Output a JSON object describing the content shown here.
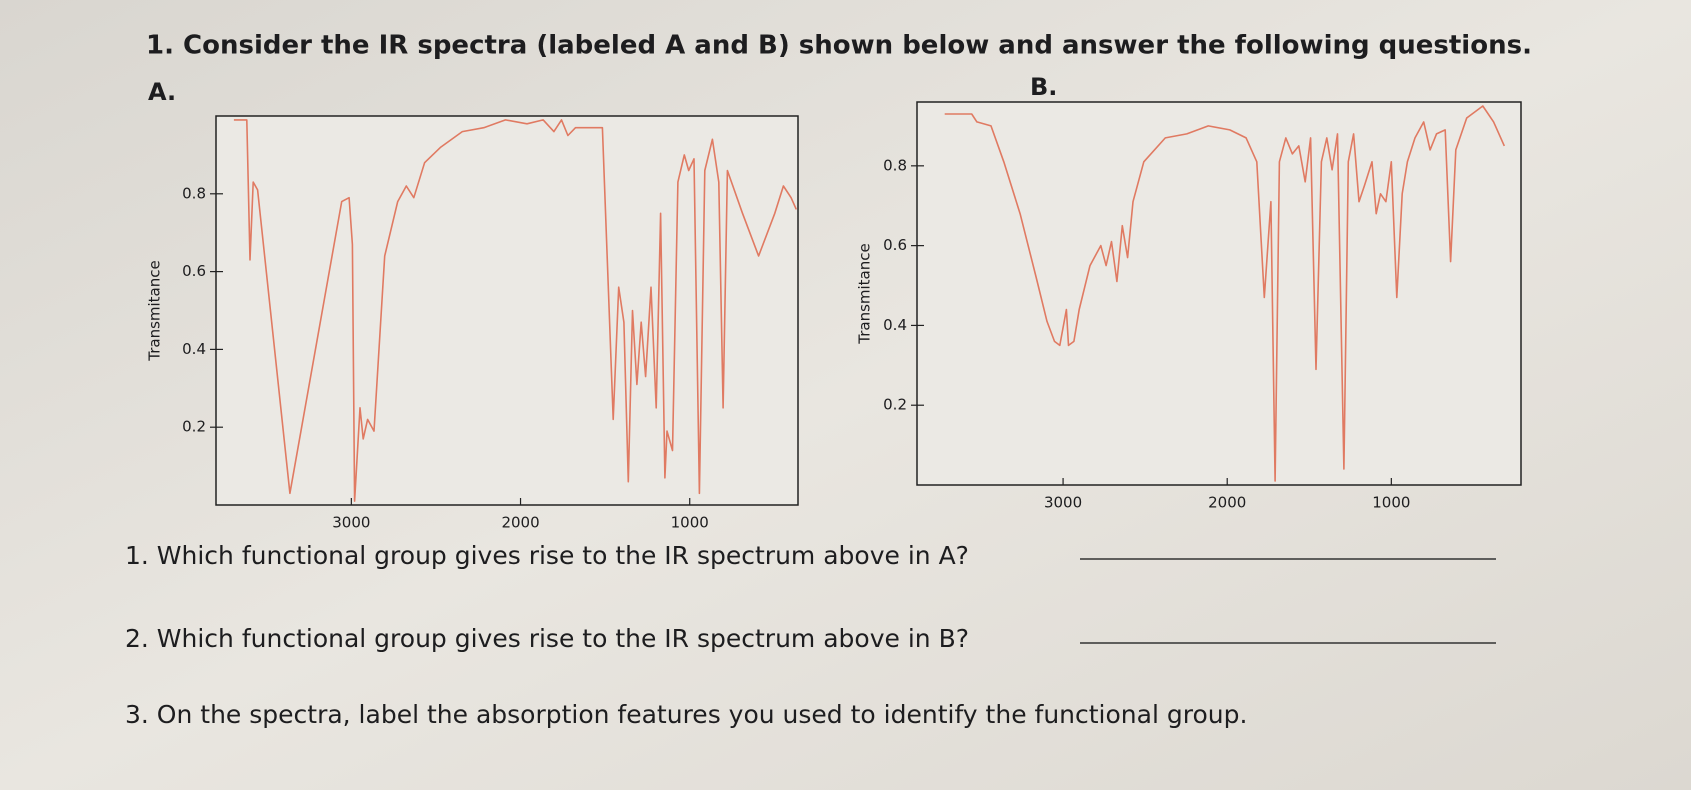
{
  "heading": "1. Consider the IR spectra (labeled A and B) shown below and answer the following questions.",
  "chart_data": [
    {
      "type": "line",
      "title": "A.",
      "ylabel": "Transmitance",
      "color": "#e07a62",
      "xlim": [
        3800,
        360
      ],
      "ylim": [
        0,
        1
      ],
      "xticks": [
        3000,
        2000,
        1000
      ],
      "yticks": [
        0.2,
        0.4,
        0.6,
        0.8
      ],
      "x": [
        3694,
        3618,
        3599,
        3580,
        3554,
        3363,
        3057,
        3013,
        2994,
        2981,
        2949,
        2930,
        2904,
        2866,
        2803,
        2726,
        2675,
        2631,
        2567,
        2471,
        2344,
        2217,
        2089,
        1962,
        1866,
        1803,
        1758,
        1720,
        1675,
        1516,
        1452,
        1420,
        1389,
        1363,
        1338,
        1312,
        1287,
        1261,
        1229,
        1198,
        1172,
        1147,
        1134,
        1102,
        1070,
        1032,
        1006,
        975,
        943,
        911,
        866,
        828,
        803,
        777,
        688,
        593,
        497,
        446,
        401,
        370
      ],
      "values": [
        0.99,
        0.99,
        0.63,
        0.83,
        0.81,
        0.03,
        0.78,
        0.79,
        0.67,
        0.01,
        0.25,
        0.17,
        0.22,
        0.19,
        0.64,
        0.78,
        0.82,
        0.79,
        0.88,
        0.92,
        0.96,
        0.97,
        0.99,
        0.98,
        0.99,
        0.96,
        0.99,
        0.95,
        0.97,
        0.97,
        0.22,
        0.56,
        0.47,
        0.06,
        0.5,
        0.31,
        0.47,
        0.33,
        0.56,
        0.25,
        0.75,
        0.07,
        0.19,
        0.14,
        0.83,
        0.9,
        0.86,
        0.89,
        0.03,
        0.86,
        0.94,
        0.83,
        0.25,
        0.86,
        0.75,
        0.64,
        0.75,
        0.82,
        0.79,
        0.76
      ]
    },
    {
      "type": "line",
      "title": "B.",
      "ylabel": "Transmitance",
      "color": "#e07a62",
      "xlim": [
        3890,
        210
      ],
      "ylim": [
        0,
        0.96
      ],
      "xticks": [
        3000,
        2000,
        1000
      ],
      "yticks": [
        0.2,
        0.4,
        0.6,
        0.8
      ],
      "x": [
        3721,
        3557,
        3525,
        3439,
        3361,
        3262,
        3164,
        3098,
        3052,
        3020,
        2980,
        2967,
        2934,
        2902,
        2836,
        2770,
        2738,
        2705,
        2672,
        2639,
        2607,
        2574,
        2508,
        2377,
        2246,
        2115,
        1984,
        1885,
        1820,
        1774,
        1734,
        1708,
        1682,
        1643,
        1603,
        1564,
        1525,
        1492,
        1459,
        1426,
        1393,
        1361,
        1328,
        1289,
        1262,
        1230,
        1197,
        1164,
        1118,
        1092,
        1066,
        1033,
        1000,
        967,
        934,
        902,
        856,
        803,
        764,
        725,
        672,
        639,
        607,
        541,
        443,
        377,
        312
      ],
      "values": [
        0.93,
        0.93,
        0.91,
        0.9,
        0.81,
        0.68,
        0.52,
        0.41,
        0.36,
        0.35,
        0.44,
        0.35,
        0.36,
        0.44,
        0.55,
        0.6,
        0.55,
        0.61,
        0.51,
        0.65,
        0.57,
        0.71,
        0.81,
        0.87,
        0.88,
        0.9,
        0.89,
        0.87,
        0.81,
        0.47,
        0.71,
        0.01,
        0.81,
        0.87,
        0.83,
        0.85,
        0.76,
        0.87,
        0.29,
        0.81,
        0.87,
        0.79,
        0.88,
        0.04,
        0.81,
        0.88,
        0.71,
        0.75,
        0.81,
        0.68,
        0.73,
        0.71,
        0.81,
        0.47,
        0.73,
        0.81,
        0.87,
        0.91,
        0.84,
        0.88,
        0.89,
        0.56,
        0.84,
        0.92,
        0.95,
        0.91,
        0.85
      ]
    }
  ],
  "questions": [
    "1. Which functional group gives rise to the IR spectrum above in A?",
    "2. Which functional group gives rise to the IR spectrum above in B?",
    "3. On the spectra, label the absorption features you used to identify the functional group."
  ]
}
